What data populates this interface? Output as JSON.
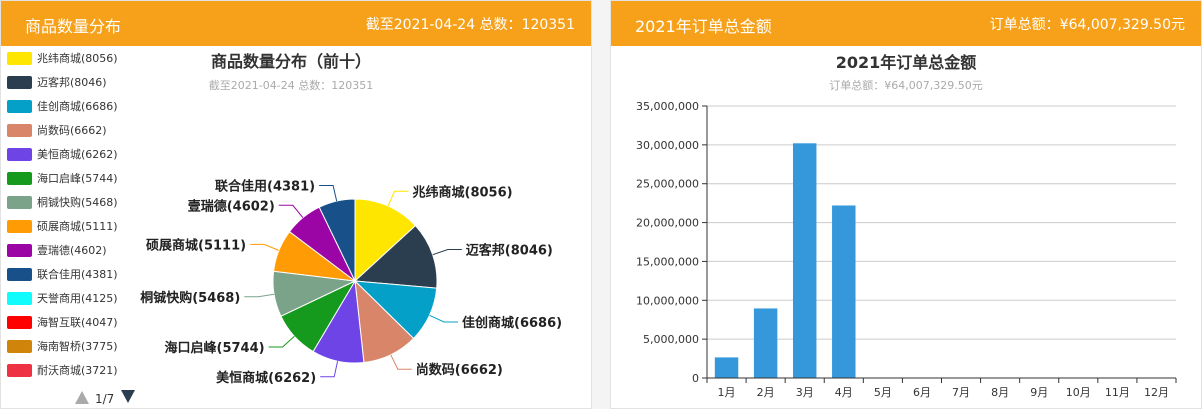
{
  "left_panel": {
    "header_title": "商品数量分布",
    "header_meta": "截至2021-04-24 总数：120351"
  },
  "right_panel": {
    "header_title": "2021年订单总金额",
    "header_meta": "订单总额：¥64,007,329.50元"
  },
  "chart_data": [
    {
      "type": "pie",
      "title": "商品数量分布（前十）",
      "subtitle": "截至2021-04-24 总数：120351",
      "legend_placement": "left",
      "legend_page": "1/7",
      "legend": [
        {
          "label": "兆纬商城(8056)",
          "color": "#ffe600"
        },
        {
          "label": "迈客邦(8046)",
          "color": "#2b3e50"
        },
        {
          "label": "佳创商城(6686)",
          "color": "#05a0c8"
        },
        {
          "label": "尚数码(6662)",
          "color": "#d8856a"
        },
        {
          "label": "美恒商城(6262)",
          "color": "#6e44e6"
        },
        {
          "label": "海口启峰(5744)",
          "color": "#169a1e"
        },
        {
          "label": "桐铖快购(5468)",
          "color": "#7aa38a"
        },
        {
          "label": "硕展商城(5111)",
          "color": "#ff9b05"
        },
        {
          "label": "壹瑞德(4602)",
          "color": "#9b05a5"
        },
        {
          "label": "联合佳用(4381)",
          "color": "#18508a"
        },
        {
          "label": "天誉商用(4125)",
          "color": "#10fcfc"
        },
        {
          "label": "海智互联(4047)",
          "color": "#ff0000"
        },
        {
          "label": "海南智桥(3775)",
          "color": "#d0850a"
        },
        {
          "label": "耐沃商城(3721)",
          "color": "#ee3244"
        }
      ],
      "slices": [
        {
          "label": "兆纬商城(8056)",
          "value": 8056,
          "color": "#ffe600"
        },
        {
          "label": "迈客邦(8046)",
          "value": 8046,
          "color": "#2b3e50"
        },
        {
          "label": "佳创商城(6686)",
          "value": 6686,
          "color": "#05a0c8"
        },
        {
          "label": "尚数码(6662)",
          "value": 6662,
          "color": "#d8856a"
        },
        {
          "label": "美恒商城(6262)",
          "value": 6262,
          "color": "#6e44e6"
        },
        {
          "label": "海口启峰(5744)",
          "value": 5744,
          "color": "#169a1e"
        },
        {
          "label": "桐铖快购(5468)",
          "value": 5468,
          "color": "#7aa38a"
        },
        {
          "label": "硕展商城(5111)",
          "value": 5111,
          "color": "#ff9b05"
        },
        {
          "label": "壹瑞德(4602)",
          "value": 4602,
          "color": "#9b05a5"
        },
        {
          "label": "联合佳用(4381)",
          "value": 4381,
          "color": "#18508a"
        }
      ]
    },
    {
      "type": "bar",
      "title": "2021年订单总金额",
      "subtitle": "订单总额：¥64,007,329.50元",
      "categories": [
        "1月",
        "2月",
        "3月",
        "4月",
        "5月",
        "6月",
        "7月",
        "8月",
        "9月",
        "10月",
        "11月",
        "12月"
      ],
      "values": [
        2650000,
        8950000,
        30200000,
        22200000,
        0,
        0,
        0,
        0,
        0,
        0,
        0,
        0
      ],
      "ylim": [
        0,
        35000000
      ],
      "yticks": [
        0,
        5000000,
        10000000,
        15000000,
        20000000,
        25000000,
        30000000,
        35000000
      ],
      "ytick_labels": [
        "0",
        "5,000,000",
        "10,000,000",
        "15,000,000",
        "20,000,000",
        "25,000,000",
        "30,000,000",
        "35,000,000"
      ],
      "bar_color": "#3498db",
      "grid": true
    }
  ]
}
